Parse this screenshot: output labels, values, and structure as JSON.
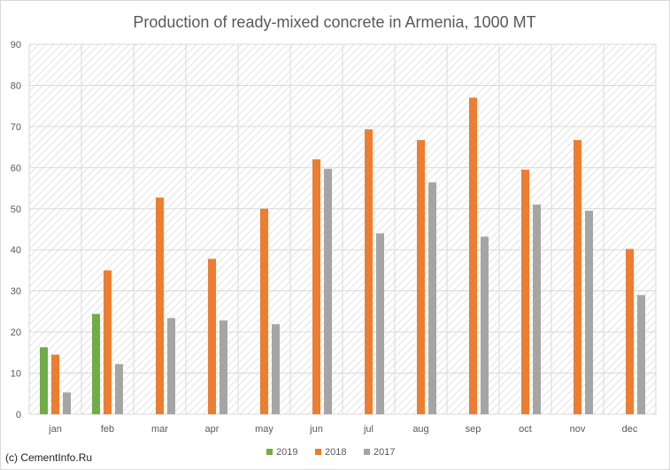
{
  "chart_data": {
    "type": "bar",
    "title": "Production of ready-mixed concrete in Armenia, 1000 MT",
    "xlabel": "",
    "ylabel": "",
    "categories": [
      "jan",
      "feb",
      "mar",
      "apr",
      "may",
      "jun",
      "jul",
      "aug",
      "sep",
      "oct",
      "nov",
      "dec"
    ],
    "ylim": [
      0,
      90
    ],
    "yticks": [
      0,
      10,
      20,
      30,
      40,
      50,
      60,
      70,
      80,
      90
    ],
    "grid": true,
    "legend_position": "bottom",
    "series": [
      {
        "name": "2019",
        "color": "#70ad47",
        "values": [
          16.3,
          24.4,
          null,
          null,
          null,
          null,
          null,
          null,
          null,
          null,
          null,
          null
        ]
      },
      {
        "name": "2018",
        "color": "#ed7d31",
        "values": [
          14.5,
          35.0,
          52.7,
          37.8,
          50.0,
          62.0,
          69.3,
          66.7,
          77.0,
          59.5,
          66.7,
          40.2
        ]
      },
      {
        "name": "2017",
        "color": "#a5a5a5",
        "values": [
          5.3,
          12.2,
          23.4,
          22.8,
          21.9,
          59.7,
          44.0,
          56.4,
          43.2,
          51.0,
          49.5,
          29.0
        ]
      }
    ]
  },
  "footer": {
    "credit": "(c) CementInfo.Ru"
  }
}
